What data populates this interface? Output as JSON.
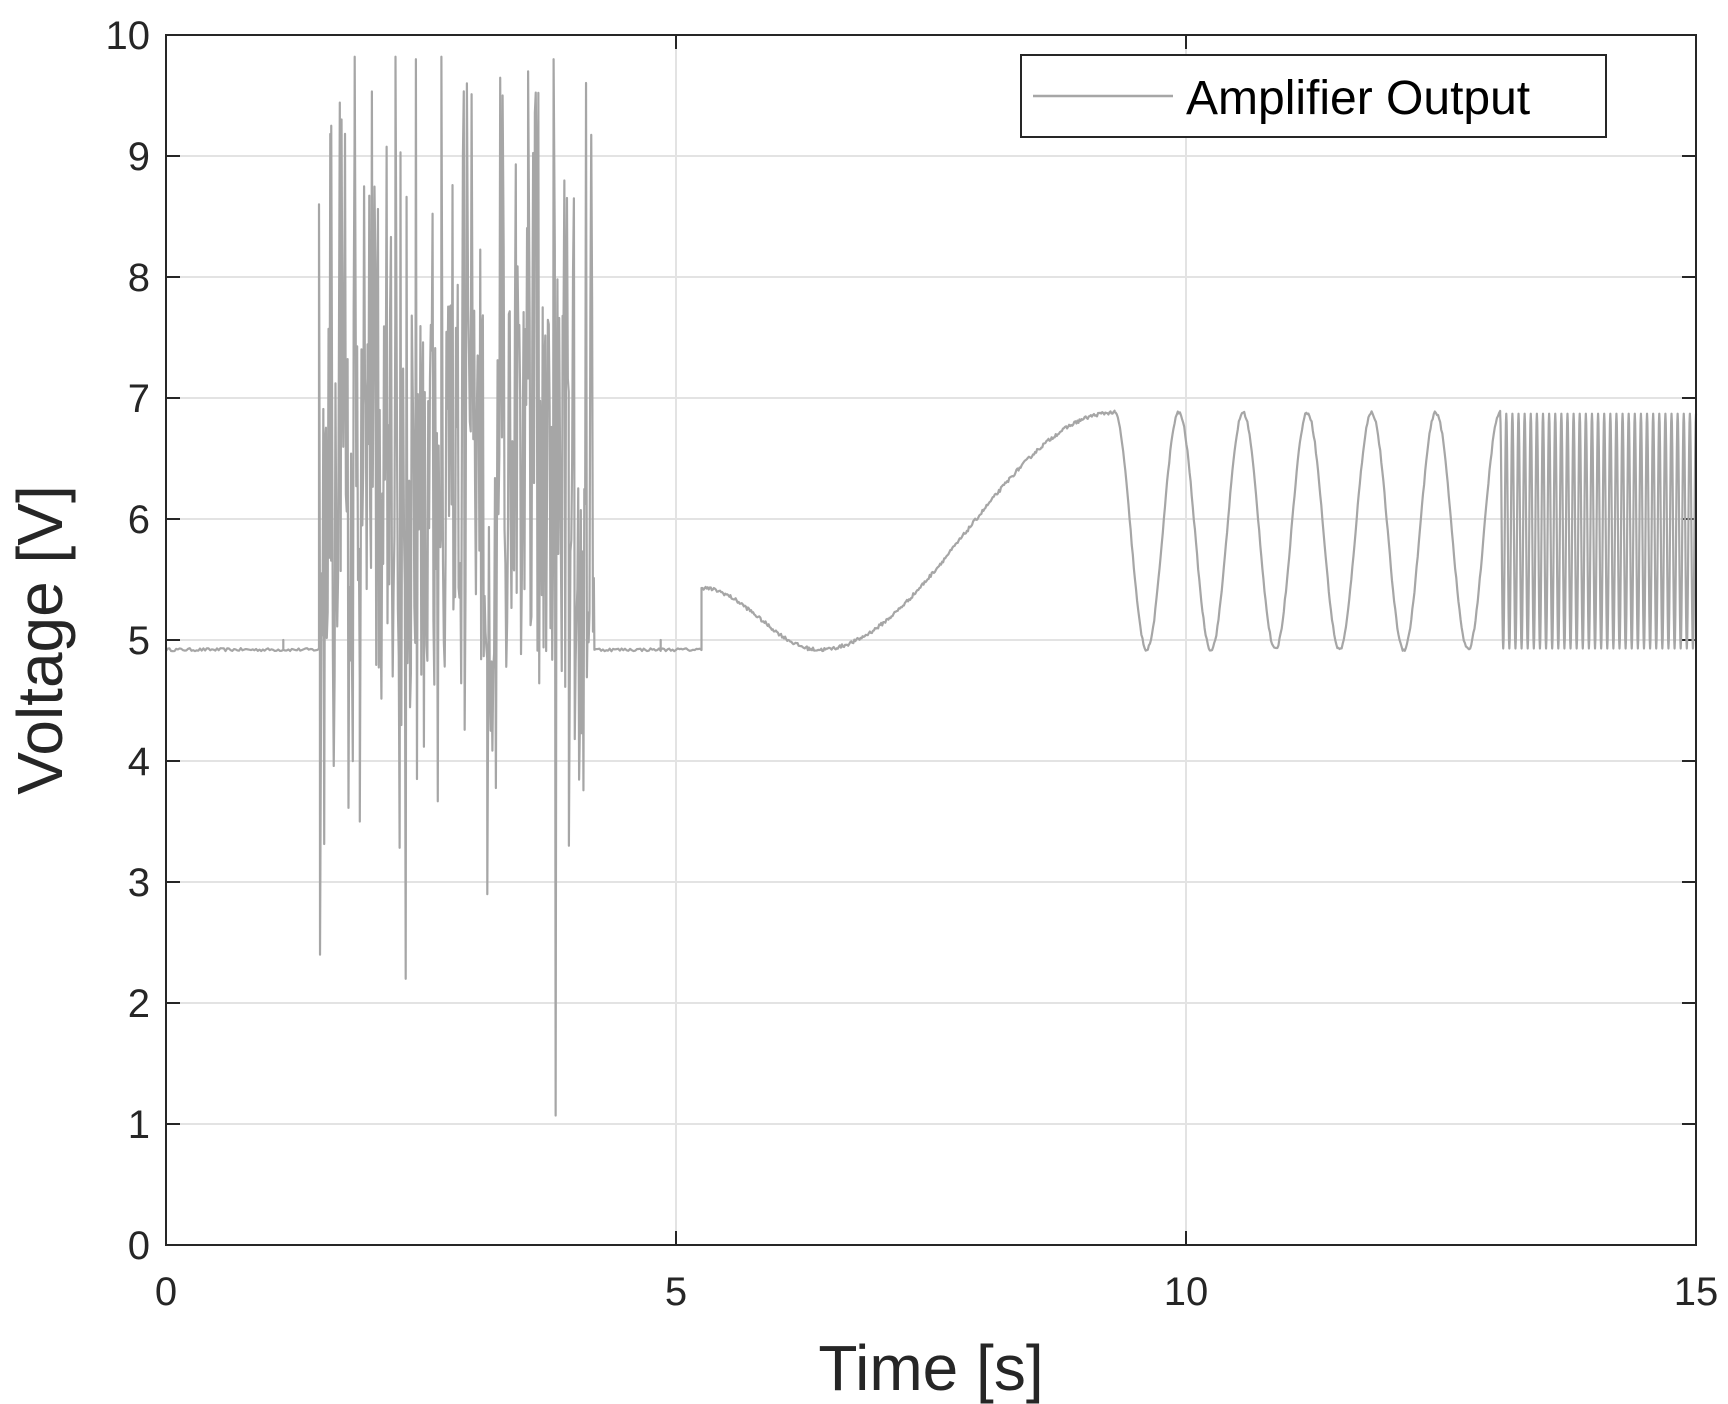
{
  "chart_data": {
    "type": "line",
    "title": "",
    "xlabel": "Time [s]",
    "ylabel": "Voltage [V]",
    "xlim": [
      0,
      15
    ],
    "ylim": [
      0,
      10
    ],
    "xticks": [
      0,
      5,
      10,
      15
    ],
    "xtick_labels": [
      "0",
      "5",
      "10",
      "15"
    ],
    "yticks": [
      0,
      1,
      2,
      3,
      4,
      5,
      6,
      7,
      8,
      9,
      10
    ],
    "ytick_labels": [
      "0",
      "1",
      "2",
      "3",
      "4",
      "5",
      "6",
      "7",
      "8",
      "9",
      "10"
    ],
    "grid": true,
    "legend_position": "top-right",
    "series": [
      {
        "name": "Amplifier Output",
        "color": "#a6a6a6",
        "segments": [
          {
            "kind": "baseline",
            "t_start": 0.0,
            "t_end": 1.5,
            "value": 4.92,
            "spike_at": 1.15,
            "spike_value": 5.0
          },
          {
            "kind": "random_burst",
            "t_start": 1.5,
            "t_end": 4.2,
            "min": 1.07,
            "max": 9.82,
            "extremes": [
              [
                1.5,
                8.6
              ],
              [
                1.51,
                2.4
              ],
              [
                1.62,
                9.25
              ],
              [
                1.85,
                9.82
              ],
              [
                1.9,
                3.5
              ],
              [
                2.25,
                9.82
              ],
              [
                2.35,
                2.2
              ],
              [
                2.45,
                9.8
              ],
              [
                2.7,
                9.82
              ],
              [
                2.95,
                9.6
              ],
              [
                3.15,
                2.9
              ],
              [
                3.3,
                9.5
              ],
              [
                3.55,
                9.7
              ],
              [
                3.8,
                9.8
              ],
              [
                3.82,
                1.07
              ],
              [
                3.95,
                3.3
              ]
            ]
          },
          {
            "kind": "baseline",
            "t_start": 4.2,
            "t_end": 5.25,
            "value": 4.92,
            "spike_at": 4.85,
            "spike_value": 5.0
          },
          {
            "kind": "chirp_start",
            "t": 5.25,
            "value": 5.43
          },
          {
            "kind": "slow_sine",
            "t_start": 5.25,
            "t_end": 9.3,
            "min": 4.92,
            "min_at": 6.4,
            "max": 6.88
          },
          {
            "kind": "sine",
            "t_start": 9.3,
            "t_end": 13.08,
            "min": 4.92,
            "max": 6.88,
            "period": 0.63
          },
          {
            "kind": "fast_sine",
            "t_start": 13.08,
            "t_end": 15.0,
            "min": 4.93,
            "max": 6.87,
            "period": 0.06
          }
        ]
      }
    ]
  }
}
